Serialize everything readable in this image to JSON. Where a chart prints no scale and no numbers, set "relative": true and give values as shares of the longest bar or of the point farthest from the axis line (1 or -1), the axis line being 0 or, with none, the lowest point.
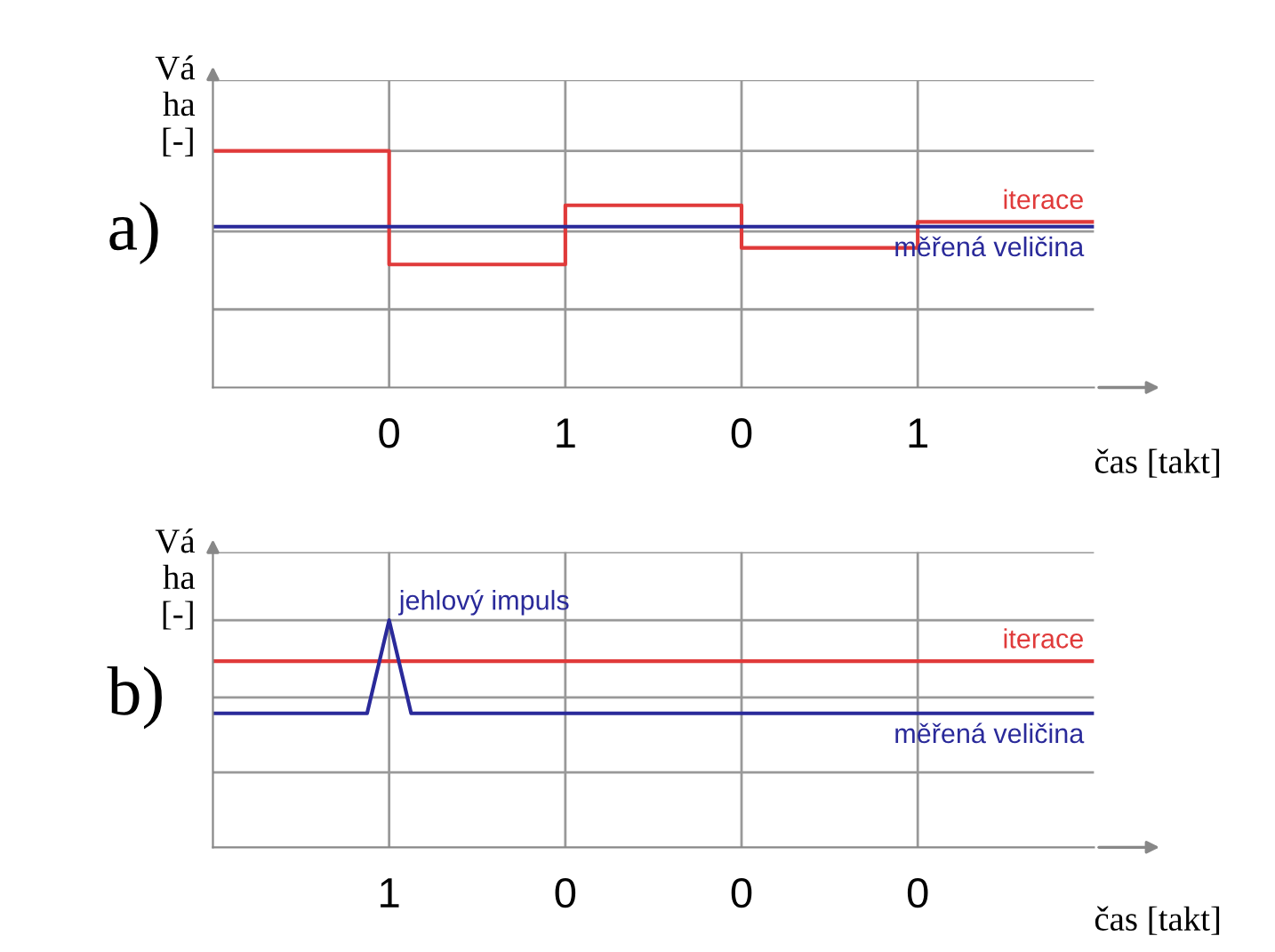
{
  "chart_data": [
    {
      "type": "line",
      "title": "a)",
      "ylabel": "Vá\nha\n[-]",
      "xlabel": "čas [takt]",
      "relative": true,
      "grid": true,
      "categories": [
        null,
        "0",
        "1",
        "0",
        "1",
        null
      ],
      "series": [
        {
          "name": "iterace",
          "type": "step",
          "color": "#e03a3a",
          "values": [
            1,
            0.52,
            0.77,
            0.59,
            0.7,
            0.7
          ]
        },
        {
          "name": "měřená veličina",
          "type": "line",
          "color": "#2a2a9a",
          "values": [
            0.68,
            0.68,
            0.68,
            0.68,
            0.68,
            0.68
          ]
        }
      ]
    },
    {
      "type": "line",
      "title": "b)",
      "ylabel": "Vá\nha\n[-]",
      "xlabel": "čas [takt]",
      "relative": true,
      "grid": true,
      "categories": [
        null,
        null,
        null,
        null,
        null,
        null,
        null,
        null,
        "1",
        null,
        null,
        null,
        null,
        null,
        null,
        null,
        "0",
        null,
        null,
        null,
        null,
        null,
        null,
        null,
        "0",
        null,
        null,
        null,
        null,
        null,
        null,
        null,
        "0",
        null,
        null,
        null,
        null,
        null,
        null,
        null,
        null
      ],
      "annotations": [
        "jehlový impuls"
      ],
      "series": [
        {
          "name": "iterace",
          "type": "line",
          "color": "#e03a3a",
          "values": [
            0.82,
            0.82,
            0.82,
            0.82,
            0.82,
            0.82,
            0.82,
            0.82,
            0.82,
            0.82,
            0.82,
            0.82,
            0.82,
            0.82,
            0.82,
            0.82,
            0.82,
            0.82,
            0.82,
            0.82,
            0.82,
            0.82,
            0.82,
            0.82,
            0.82,
            0.82,
            0.82,
            0.82,
            0.82,
            0.82,
            0.82,
            0.82,
            0.82,
            0.82,
            0.82,
            0.82,
            0.82,
            0.82,
            0.82,
            0.82,
            0.82
          ]
        },
        {
          "name": "měřená veličina",
          "type": "line",
          "color": "#2a2a9a",
          "values": [
            0.59,
            0.59,
            0.59,
            0.59,
            0.59,
            0.59,
            0.59,
            0.59,
            1,
            0.59,
            0.59,
            0.59,
            0.59,
            0.59,
            0.59,
            0.59,
            0.59,
            0.59,
            0.59,
            0.59,
            0.59,
            0.59,
            0.59,
            0.59,
            0.59,
            0.59,
            0.59,
            0.59,
            0.59,
            0.59,
            0.59,
            0.59,
            0.59,
            0.59,
            0.59,
            0.59,
            0.59,
            0.59,
            0.59,
            0.59,
            0.59
          ]
        }
      ]
    }
  ]
}
